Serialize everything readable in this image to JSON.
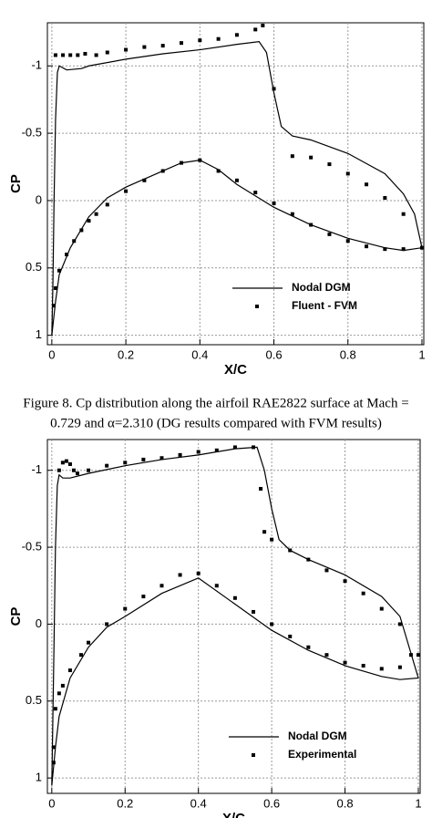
{
  "chart_data": [
    {
      "type": "line",
      "xlabel": "X/C",
      "ylabel": "CP",
      "xlim": [
        -0.012,
        1.005
      ],
      "ylim": [
        -1.32,
        1.07
      ],
      "y_inverted": true,
      "xticks": [
        0,
        0.2,
        0.4,
        0.6,
        0.8,
        1
      ],
      "yticks": [
        -1,
        -0.5,
        0,
        0.5,
        1
      ],
      "grid": true,
      "legend": "lower right",
      "series": [
        {
          "name": "Nodal DGM",
          "style": "line",
          "color": "#000000",
          "x": [
            0,
            0.003,
            0.006,
            0.01,
            0.015,
            0.02,
            0.04,
            0.08,
            0.1,
            0.2,
            0.3,
            0.4,
            0.5,
            0.56,
            0.58,
            0.6,
            0.62,
            0.65,
            0.7,
            0.8,
            0.9,
            0.95,
            0.98,
            1.0,
            0.95,
            0.9,
            0.8,
            0.7,
            0.6,
            0.5,
            0.45,
            0.4,
            0.35,
            0.3,
            0.2,
            0.15,
            0.1,
            0.05,
            0.02,
            0.01,
            0
          ],
          "y": [
            1.0,
            0.6,
            0.0,
            -0.6,
            -0.95,
            -1.0,
            -0.97,
            -0.98,
            -1.0,
            -1.05,
            -1.09,
            -1.12,
            -1.16,
            -1.18,
            -1.1,
            -0.8,
            -0.55,
            -0.48,
            -0.45,
            -0.35,
            -0.2,
            -0.05,
            0.1,
            0.35,
            0.37,
            0.35,
            0.28,
            0.18,
            0.05,
            -0.12,
            -0.23,
            -0.3,
            -0.28,
            -0.22,
            -0.1,
            -0.02,
            0.12,
            0.35,
            0.55,
            0.75,
            1.0
          ]
        },
        {
          "name": "Fluent - FVM",
          "style": "markers",
          "color": "#000000",
          "x": [
            0.01,
            0.03,
            0.05,
            0.07,
            0.09,
            0.12,
            0.15,
            0.2,
            0.25,
            0.3,
            0.35,
            0.4,
            0.45,
            0.5,
            0.55,
            0.57,
            0.6,
            0.65,
            0.7,
            0.75,
            0.8,
            0.85,
            0.9,
            0.95,
            0.005,
            0.01,
            0.02,
            0.04,
            0.06,
            0.08,
            0.1,
            0.12,
            0.15,
            0.2,
            0.25,
            0.3,
            0.35,
            0.4,
            0.45,
            0.5,
            0.55,
            0.6,
            0.65,
            0.7,
            0.75,
            0.8,
            0.85,
            0.9,
            0.95,
            1.0
          ],
          "y": [
            -1.08,
            -1.08,
            -1.08,
            -1.08,
            -1.09,
            -1.08,
            -1.1,
            -1.12,
            -1.14,
            -1.15,
            -1.17,
            -1.19,
            -1.2,
            -1.23,
            -1.27,
            -1.3,
            -0.83,
            -0.33,
            -0.32,
            -0.27,
            -0.2,
            -0.12,
            -0.02,
            0.1,
            0.78,
            0.65,
            0.52,
            0.4,
            0.3,
            0.22,
            0.15,
            0.1,
            0.03,
            -0.07,
            -0.15,
            -0.22,
            -0.28,
            -0.3,
            -0.22,
            -0.15,
            -0.06,
            0.02,
            0.1,
            0.18,
            0.25,
            0.3,
            0.34,
            0.36,
            0.36,
            0.35
          ]
        }
      ]
    },
    {
      "type": "line",
      "xlabel": "X/C",
      "ylabel": "CP",
      "xlim": [
        -0.012,
        1.005
      ],
      "ylim": [
        -1.2,
        1.1
      ],
      "y_inverted": true,
      "xticks": [
        0,
        0.2,
        0.4,
        0.6,
        0.8,
        1
      ],
      "yticks": [
        -1,
        -0.5,
        0,
        0.5,
        1
      ],
      "grid": true,
      "legend": "lower right",
      "series": [
        {
          "name": "Nodal DGM",
          "style": "line",
          "color": "#000000",
          "x": [
            0,
            0.005,
            0.01,
            0.015,
            0.02,
            0.03,
            0.05,
            0.1,
            0.2,
            0.3,
            0.4,
            0.5,
            0.56,
            0.58,
            0.6,
            0.62,
            0.65,
            0.7,
            0.8,
            0.9,
            0.95,
            1.0,
            0.95,
            0.9,
            0.8,
            0.7,
            0.6,
            0.5,
            0.4,
            0.3,
            0.2,
            0.15,
            0.1,
            0.05,
            0.02,
            0.01,
            0
          ],
          "y": [
            1.05,
            0.3,
            -0.5,
            -0.9,
            -0.97,
            -0.95,
            -0.95,
            -0.98,
            -1.03,
            -1.07,
            -1.1,
            -1.14,
            -1.15,
            -1.0,
            -0.75,
            -0.55,
            -0.48,
            -0.42,
            -0.32,
            -0.18,
            -0.05,
            0.35,
            0.36,
            0.34,
            0.27,
            0.17,
            0.04,
            -0.13,
            -0.3,
            -0.2,
            -0.05,
            0.02,
            0.15,
            0.35,
            0.6,
            0.8,
            1.05
          ]
        },
        {
          "name": "Experimental",
          "style": "markers",
          "color": "#000000",
          "x": [
            0.02,
            0.03,
            0.04,
            0.05,
            0.06,
            0.07,
            0.1,
            0.15,
            0.2,
            0.25,
            0.3,
            0.35,
            0.4,
            0.45,
            0.5,
            0.55,
            0.57,
            0.58,
            0.6,
            0.65,
            0.7,
            0.75,
            0.8,
            0.85,
            0.9,
            0.95,
            1.0,
            0.005,
            0.005,
            0.01,
            0.02,
            0.03,
            0.05,
            0.08,
            0.1,
            0.15,
            0.2,
            0.25,
            0.3,
            0.35,
            0.4,
            0.45,
            0.5,
            0.55,
            0.6,
            0.65,
            0.7,
            0.75,
            0.8,
            0.85,
            0.9,
            0.95,
            0.98
          ],
          "y": [
            -1.0,
            -1.05,
            -1.06,
            -1.04,
            -1.0,
            -0.98,
            -1.0,
            -1.03,
            -1.05,
            -1.07,
            -1.08,
            -1.1,
            -1.12,
            -1.13,
            -1.15,
            -1.15,
            -0.88,
            -0.6,
            -0.55,
            -0.48,
            -0.42,
            -0.35,
            -0.28,
            -0.2,
            -0.1,
            0.0,
            0.2,
            0.8,
            0.9,
            0.55,
            0.45,
            0.4,
            0.3,
            0.2,
            0.12,
            0.0,
            -0.1,
            -0.18,
            -0.25,
            -0.32,
            -0.33,
            -0.25,
            -0.17,
            -0.08,
            0.0,
            0.08,
            0.15,
            0.2,
            0.25,
            0.27,
            0.29,
            0.28,
            0.2
          ]
        }
      ]
    }
  ],
  "caption": [
    "Figure 8. Cp distribution along the airfoil RAE2822 surface at Mach =",
    "0.729 and α=2.310 (DG results compared with FVM results)"
  ]
}
